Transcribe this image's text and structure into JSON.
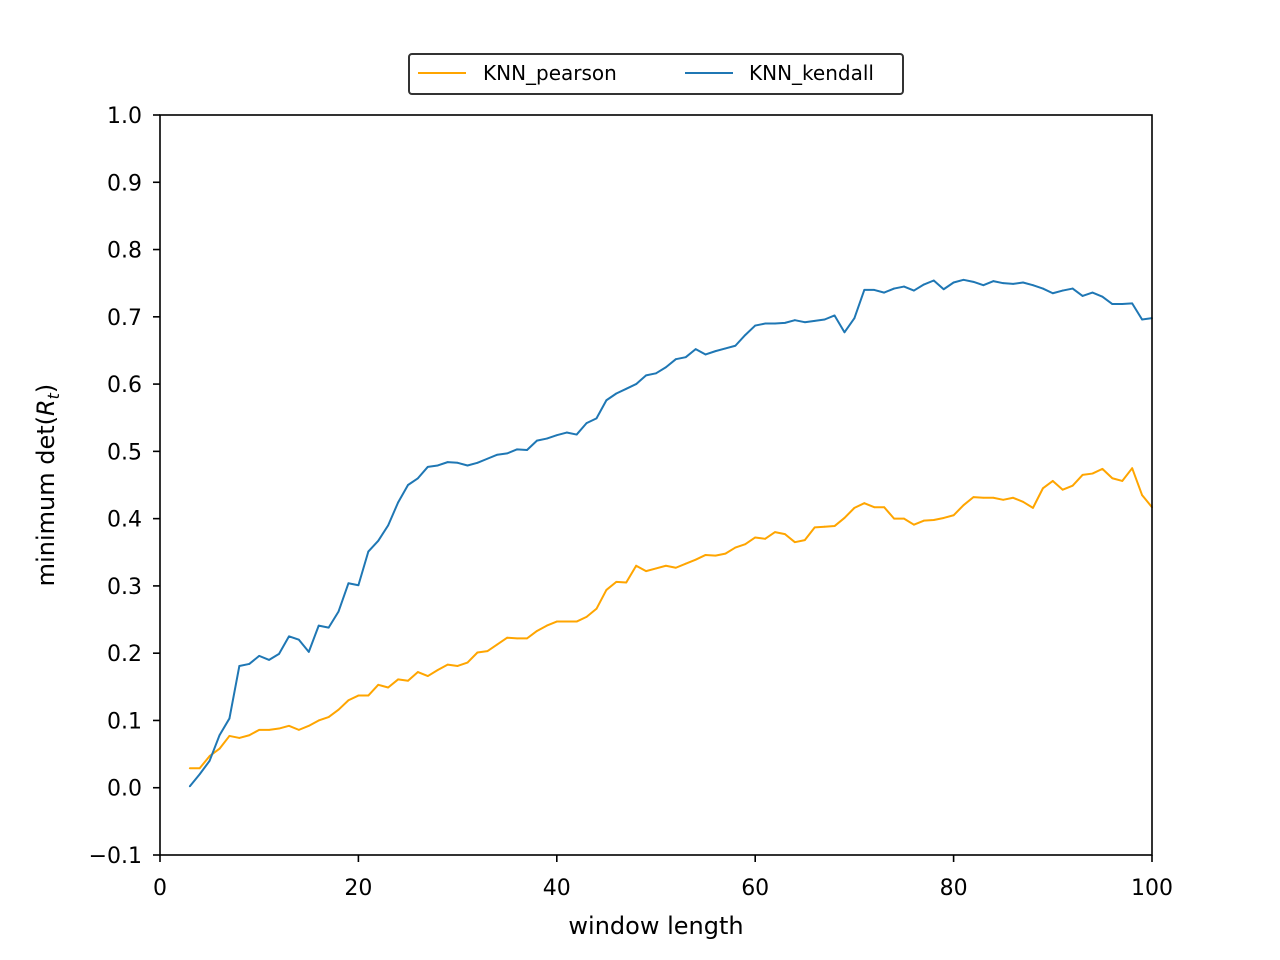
{
  "chart_data": {
    "type": "line",
    "xlabel": "window length",
    "ylabel_prefix": "minimum det(",
    "ylabel_var": "R",
    "ylabel_sub": "t",
    "ylabel_suffix": ")",
    "xlim": [
      0,
      100
    ],
    "ylim": [
      -0.1,
      1.0
    ],
    "xticks": [
      0,
      20,
      40,
      60,
      80,
      100
    ],
    "yticks": [
      -0.1,
      0.0,
      0.1,
      0.2,
      0.3,
      0.4,
      0.5,
      0.6,
      0.7,
      0.8,
      0.9,
      1.0
    ],
    "grid": false,
    "legend_placement": "top-center, above plot",
    "series": [
      {
        "name": "KNN_pearson",
        "color": "#ffa500",
        "x": [
          3,
          4,
          5,
          6,
          7,
          8,
          9,
          10,
          11,
          12,
          13,
          14,
          15,
          16,
          17,
          18,
          19,
          20,
          21,
          22,
          23,
          24,
          25,
          26,
          27,
          28,
          29,
          30,
          31,
          32,
          33,
          34,
          35,
          36,
          37,
          38,
          39,
          40,
          41,
          42,
          43,
          44,
          45,
          46,
          47,
          48,
          49,
          50,
          51,
          52,
          53,
          54,
          55,
          56,
          57,
          58,
          59,
          60,
          61,
          62,
          63,
          64,
          65,
          66,
          67,
          68,
          69,
          70,
          71,
          72,
          73,
          74,
          75,
          76,
          77,
          78,
          79,
          80,
          81,
          82,
          83,
          84,
          85,
          86,
          87,
          88,
          89,
          90,
          91,
          92,
          93,
          94,
          95,
          96,
          97,
          98,
          99,
          100
        ],
        "y": [
          0.029,
          0.029,
          0.047,
          0.058,
          0.077,
          0.074,
          0.078,
          0.086,
          0.086,
          0.088,
          0.092,
          0.086,
          0.092,
          0.1,
          0.105,
          0.116,
          0.13,
          0.137,
          0.137,
          0.153,
          0.149,
          0.161,
          0.159,
          0.172,
          0.166,
          0.175,
          0.183,
          0.181,
          0.186,
          0.201,
          0.203,
          0.213,
          0.223,
          0.222,
          0.222,
          0.233,
          0.241,
          0.247,
          0.247,
          0.247,
          0.254,
          0.266,
          0.294,
          0.306,
          0.305,
          0.33,
          0.322,
          0.326,
          0.33,
          0.327,
          0.333,
          0.339,
          0.346,
          0.345,
          0.348,
          0.357,
          0.362,
          0.372,
          0.37,
          0.38,
          0.377,
          0.365,
          0.368,
          0.387,
          0.388,
          0.389,
          0.401,
          0.416,
          0.423,
          0.417,
          0.417,
          0.4,
          0.4,
          0.391,
          0.397,
          0.398,
          0.401,
          0.405,
          0.42,
          0.432,
          0.431,
          0.431,
          0.428,
          0.431,
          0.425,
          0.416,
          0.445,
          0.456,
          0.443,
          0.449,
          0.465,
          0.467,
          0.474,
          0.46,
          0.456,
          0.475,
          0.435,
          0.417
        ]
      },
      {
        "name": "KNN_kendall",
        "color": "#1f77b4",
        "x": [
          3,
          4,
          5,
          6,
          7,
          8,
          9,
          10,
          11,
          12,
          13,
          14,
          15,
          16,
          17,
          18,
          19,
          20,
          21,
          22,
          23,
          24,
          25,
          26,
          27,
          28,
          29,
          30,
          31,
          32,
          33,
          34,
          35,
          36,
          37,
          38,
          39,
          40,
          41,
          42,
          43,
          44,
          45,
          46,
          47,
          48,
          49,
          50,
          51,
          52,
          53,
          54,
          55,
          56,
          57,
          58,
          59,
          60,
          61,
          62,
          63,
          64,
          65,
          66,
          67,
          68,
          69,
          70,
          71,
          72,
          73,
          74,
          75,
          76,
          77,
          78,
          79,
          80,
          81,
          82,
          83,
          84,
          85,
          86,
          87,
          88,
          89,
          90,
          91,
          92,
          93,
          94,
          95,
          96,
          97,
          98,
          99,
          100
        ],
        "y": [
          0.002,
          0.02,
          0.04,
          0.078,
          0.103,
          0.181,
          0.184,
          0.196,
          0.19,
          0.199,
          0.225,
          0.22,
          0.202,
          0.241,
          0.238,
          0.262,
          0.304,
          0.301,
          0.351,
          0.367,
          0.39,
          0.424,
          0.45,
          0.46,
          0.477,
          0.479,
          0.484,
          0.483,
          0.479,
          0.483,
          0.489,
          0.495,
          0.497,
          0.503,
          0.502,
          0.516,
          0.519,
          0.524,
          0.528,
          0.525,
          0.542,
          0.549,
          0.576,
          0.586,
          0.593,
          0.6,
          0.613,
          0.616,
          0.625,
          0.637,
          0.64,
          0.652,
          0.644,
          0.649,
          0.653,
          0.657,
          0.673,
          0.687,
          0.69,
          0.69,
          0.691,
          0.695,
          0.692,
          0.694,
          0.696,
          0.702,
          0.677,
          0.698,
          0.74,
          0.74,
          0.736,
          0.742,
          0.745,
          0.739,
          0.748,
          0.754,
          0.741,
          0.751,
          0.755,
          0.752,
          0.747,
          0.753,
          0.75,
          0.749,
          0.751,
          0.747,
          0.742,
          0.735,
          0.739,
          0.742,
          0.731,
          0.736,
          0.73,
          0.719,
          0.719,
          0.72,
          0.696,
          0.698
        ]
      }
    ]
  }
}
